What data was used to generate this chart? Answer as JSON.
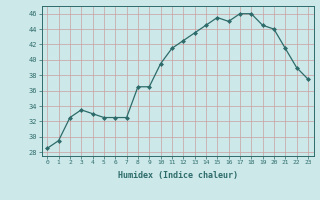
{
  "x": [
    0,
    1,
    2,
    3,
    4,
    5,
    6,
    7,
    8,
    9,
    10,
    11,
    12,
    13,
    14,
    15,
    16,
    17,
    18,
    19,
    20,
    21,
    22,
    23
  ],
  "y": [
    28.5,
    29.5,
    32.5,
    33.5,
    33.0,
    32.5,
    32.5,
    32.5,
    36.5,
    36.5,
    39.5,
    41.5,
    42.5,
    43.5,
    44.5,
    45.5,
    45.0,
    46.0,
    46.0,
    44.5,
    44.0,
    41.5,
    39.0,
    37.5
  ],
  "line_color": "#2e6b6b",
  "marker": "D",
  "marker_size": 2.0,
  "bg_color": "#cce8e8",
  "grid_color": "#c8a0a0",
  "xlabel": "Humidex (Indice chaleur)",
  "ylim": [
    27.5,
    47
  ],
  "xlim": [
    -0.5,
    23.5
  ],
  "yticks": [
    28,
    30,
    32,
    34,
    36,
    38,
    40,
    42,
    44,
    46
  ],
  "xtick_labels": [
    "0",
    "1",
    "2",
    "3",
    "4",
    "5",
    "6",
    "7",
    "8",
    "9",
    "10",
    "11",
    "12",
    "13",
    "14",
    "15",
    "16",
    "17",
    "18",
    "19",
    "20",
    "21",
    "22",
    "23"
  ]
}
